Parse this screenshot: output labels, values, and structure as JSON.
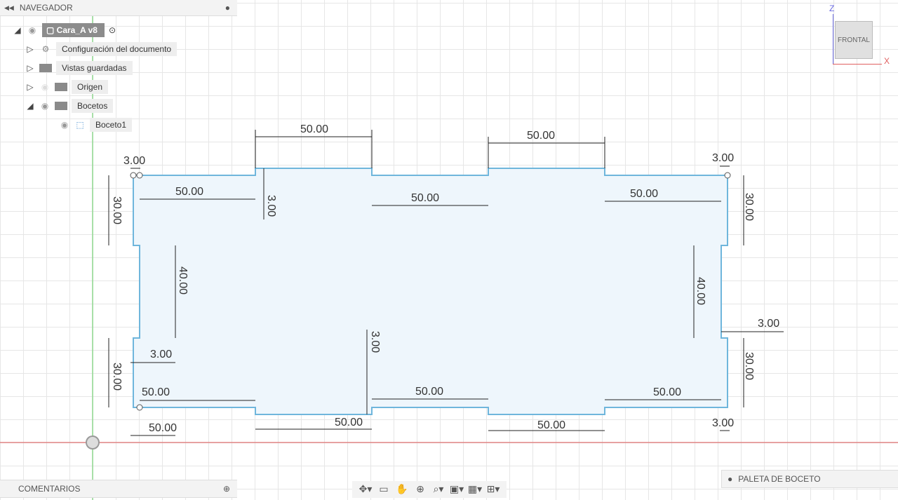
{
  "navigator": {
    "title": "NAVEGADOR",
    "root": "Cara_A v8",
    "items": [
      "Configuración del documento",
      "Vistas guardadas",
      "Origen",
      "Bocetos",
      "Boceto1"
    ]
  },
  "comments": {
    "title": "COMENTARIOS"
  },
  "viewcube": {
    "face": "FRONTAL",
    "z": "Z",
    "x": "X"
  },
  "palette": {
    "label": "PALETA DE BOCETO"
  },
  "dims": [
    "50.00",
    "50.00",
    "3.00",
    "3.00",
    "50.00",
    "3.00",
    "50.00",
    "50.00",
    "30.00",
    "30.00",
    "40.00",
    "40.00",
    "3.00",
    "3.00",
    "30.00",
    "30.00",
    "3.00",
    "50.00",
    "50.00",
    "50.00",
    "50.00",
    "50.00",
    "50.00",
    "3.00",
    "3.00"
  ],
  "colors": {
    "sketch": "#6fb6dc",
    "fill": "#eef6fc",
    "x_axis": "#e06060",
    "y_axis": "#7fd07f"
  }
}
